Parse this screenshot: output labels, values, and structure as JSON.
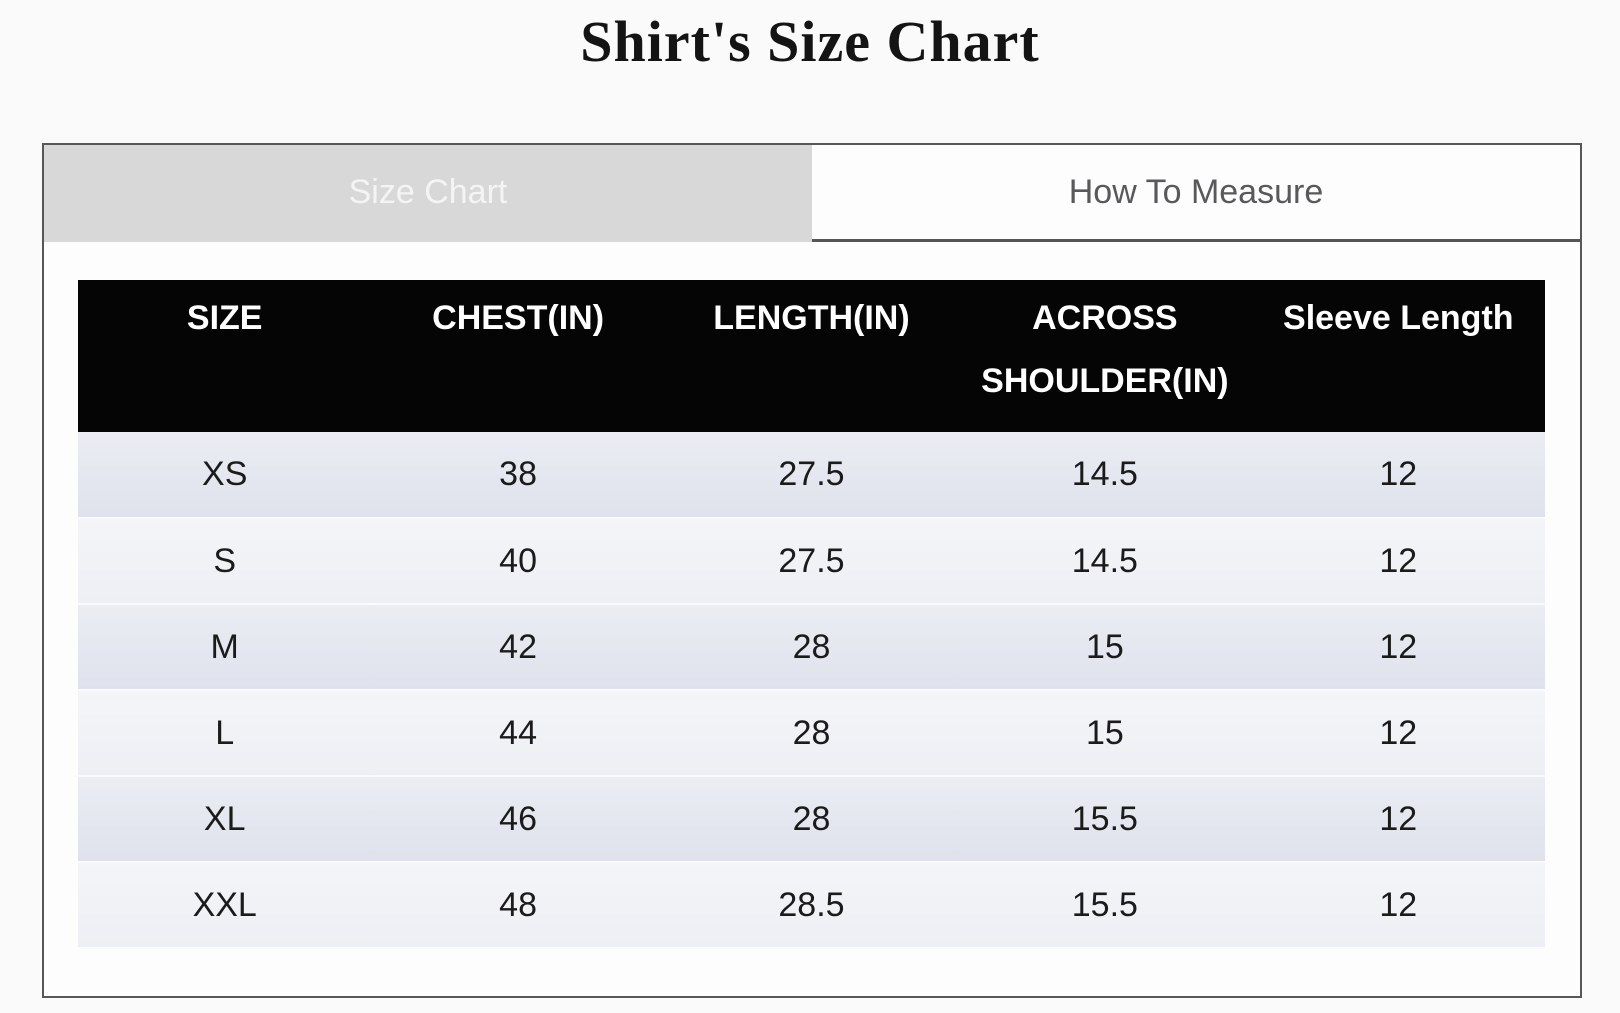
{
  "page": {
    "title": "Shirt's Size Chart"
  },
  "tabs": [
    {
      "label": "Size Chart",
      "active": true
    },
    {
      "label": "How To Measure",
      "active": false
    }
  ],
  "table": {
    "columns": [
      "SIZE",
      "CHEST(IN)",
      "LENGTH(IN)",
      "ACROSS SHOULDER(IN)",
      "Sleeve Length"
    ],
    "rows": [
      [
        "XS",
        "38",
        "27.5",
        "14.5",
        "12"
      ],
      [
        "S",
        "40",
        "27.5",
        "14.5",
        "12"
      ],
      [
        "M",
        "42",
        "28",
        "15",
        "12"
      ],
      [
        "L",
        "44",
        "28",
        "15",
        "12"
      ],
      [
        "XL",
        "46",
        "28",
        "15.5",
        "12"
      ],
      [
        "XXL",
        "48",
        "28.5",
        "15.5",
        "12"
      ]
    ]
  },
  "colors": {
    "page_background": "#fbfafb",
    "panel_border": "#57575a",
    "tab_active_bg": "#d8d8d8",
    "tab_active_text": "#f4f4f4",
    "tab_inactive_bg": "#fdfdfd",
    "tab_inactive_text": "#59595c",
    "header_bg": "#050505",
    "header_text": "#ffffff",
    "row_dark": "#e2e4ee",
    "row_light": "#f2f4f7",
    "cell_text": "#1b1b1b"
  }
}
